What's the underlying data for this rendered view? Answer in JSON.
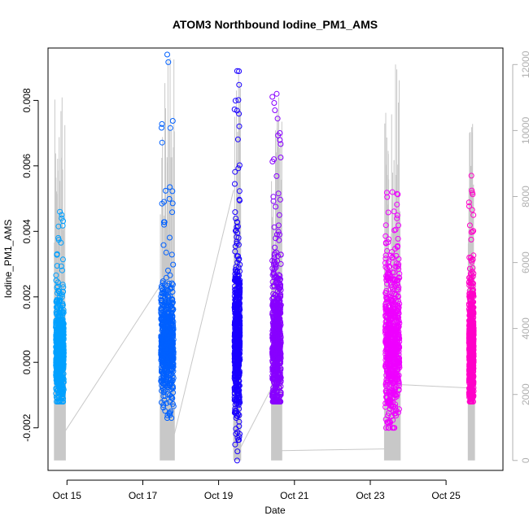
{
  "chart_data": {
    "type": "scatter",
    "title": "ATOM3 Northbound Iodine_PM1_AMS",
    "xlabel": "Date",
    "ylabel": "Iodine_PM1_AMS",
    "x_axis": {
      "type": "date",
      "range": [
        "2017-10-14 12:00",
        "2017-10-26 12:00"
      ],
      "ticks": [
        "Oct 15",
        "Oct 17",
        "Oct 19",
        "Oct 21",
        "Oct 23",
        "Oct 25"
      ]
    },
    "y_left": {
      "range": [
        -0.0033,
        0.0096
      ],
      "ticks": [
        "-0.002",
        "0.000",
        "0.002",
        "0.004",
        "0.006",
        "0.008"
      ]
    },
    "y_right": {
      "color": "#b0b0b0",
      "range": [
        -300,
        12500
      ],
      "ticks": [
        "0",
        "2000",
        "4000",
        "6000",
        "8000",
        "10000",
        "12000"
      ]
    },
    "series": [
      {
        "color": "#00a0ff",
        "x_range": [
          "2017-10-14 17:00",
          "2017-10-14 22:00"
        ],
        "y_stats": {
          "median": 0.0003,
          "p5": -0.0007,
          "p95": 0.0015,
          "min": -0.0012,
          "max": 0.0046
        }
      },
      {
        "color": "#0060ff",
        "x_range": [
          "2017-10-17 11:30",
          "2017-10-17 19:30"
        ],
        "y_stats": {
          "median": 0.0006,
          "p5": -0.0006,
          "p95": 0.0019,
          "min": -0.0017,
          "max": 0.0094
        }
      },
      {
        "color": "#1a00ff",
        "x_range": [
          "2017-10-19 10:00",
          "2017-10-19 13:30"
        ],
        "y_stats": {
          "median": 0.0006,
          "p5": -0.0009,
          "p95": 0.0025,
          "min": -0.003,
          "max": 0.0089
        }
      },
      {
        "color": "#8800ff",
        "x_range": [
          "2017-10-20 10:00",
          "2017-10-20 15:30"
        ],
        "y_stats": {
          "median": 0.0006,
          "p5": -0.0008,
          "p95": 0.0025,
          "min": -0.0012,
          "max": 0.0082
        }
      },
      {
        "color": "#ee00ff",
        "x_range": [
          "2017-10-23 09:30",
          "2017-10-23 18:30"
        ],
        "y_stats": {
          "median": 0.0006,
          "p5": -0.0009,
          "p95": 0.0025,
          "min": -0.002,
          "max": 0.0052
        }
      },
      {
        "color": "#ff00c8",
        "x_range": [
          "2017-10-25 14:30",
          "2017-10-25 17:30"
        ],
        "y_stats": {
          "median": 0.0005,
          "p5": -0.0008,
          "p95": 0.002,
          "min": -0.0012,
          "max": 0.0057
        }
      }
    ],
    "altitude_trace": {
      "color": "#c8c8c8",
      "axis": "right",
      "flight_segments": [
        {
          "x_range": [
            "2017-10-14 16:00",
            "2017-10-14 23:00"
          ],
          "min": 0,
          "max": 11000
        },
        {
          "x_range": [
            "2017-10-17 11:00",
            "2017-10-17 20:00"
          ],
          "min": 0,
          "max": 12200
        },
        {
          "x_range": [
            "2017-10-19 09:30",
            "2017-10-19 14:00"
          ],
          "min": 0,
          "max": 11700
        },
        {
          "x_range": [
            "2017-10-20 09:30",
            "2017-10-20 16:00"
          ],
          "min": 0,
          "max": 11000
        },
        {
          "x_range": [
            "2017-10-23 09:00",
            "2017-10-23 19:00"
          ],
          "min": 0,
          "max": 12000
        },
        {
          "x_range": [
            "2017-10-25 14:00",
            "2017-10-25 18:00"
          ],
          "min": 0,
          "max": 10200
        }
      ],
      "ground_links": [
        {
          "from": [
            "2017-10-14 23:00",
            900
          ],
          "to": [
            "2017-10-17 11:00",
            5300
          ]
        },
        {
          "from": [
            "2017-10-17 20:00",
            800
          ],
          "to": [
            "2017-10-19 09:30",
            8200
          ]
        },
        {
          "from": [
            "2017-10-19 14:00",
            400
          ],
          "to": [
            "2017-10-20 09:30",
            2200
          ]
        },
        {
          "from": [
            "2017-10-20 16:00",
            300
          ],
          "to": [
            "2017-10-23 09:00",
            350
          ]
        },
        {
          "from": [
            "2017-10-23 19:00",
            2300
          ],
          "to": [
            "2017-10-25 14:00",
            2200
          ]
        }
      ]
    },
    "grid": false,
    "legend": "none"
  }
}
